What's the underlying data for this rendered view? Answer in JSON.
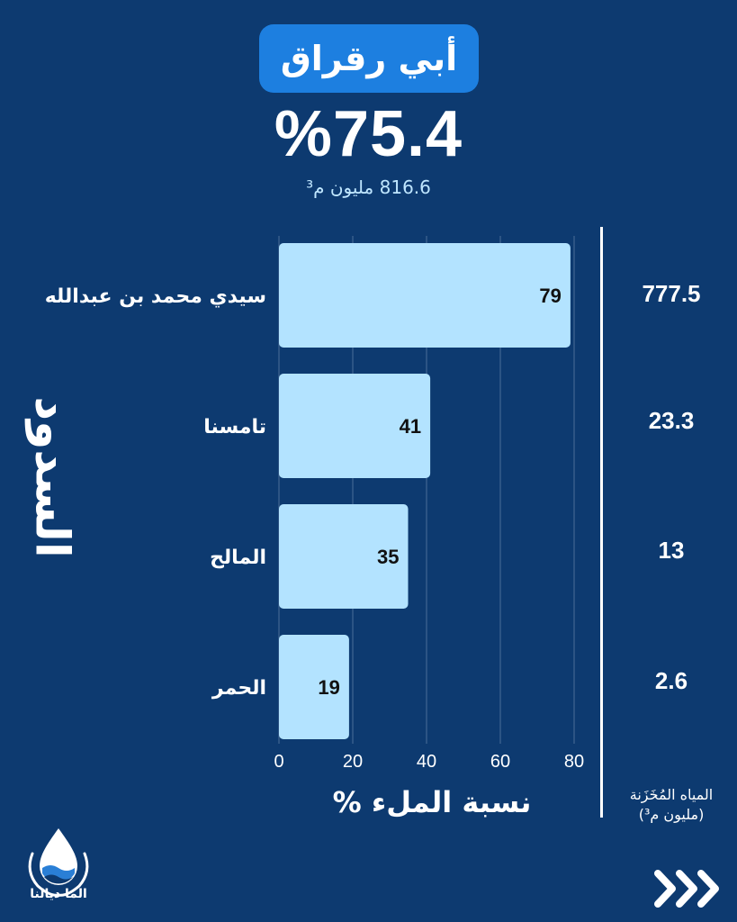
{
  "header": {
    "title": "أبي رقراق",
    "total_percent": "%75.4",
    "total_volume": "816.6 مليون م³"
  },
  "vertical_title": "السدود",
  "stored_label": {
    "line1": "المياه المُخَزَنة",
    "line2": "(مليون م³)"
  },
  "stored_values": [
    "777.5",
    "23.3",
    "13",
    "2.6"
  ],
  "brand": {
    "name": "الما ديالنا"
  },
  "colors": {
    "background": "#0d3a70",
    "bar": "#b3e3ff",
    "title_box": "#1d7fe0"
  },
  "chart_data": {
    "type": "bar",
    "orientation": "horizontal",
    "categories": [
      "سيدي محمد بن عبدالله",
      "تامسنا",
      "المالح",
      "الحمر"
    ],
    "values": [
      79,
      41,
      35,
      19
    ],
    "xlabel": "نسبة الملء %",
    "ylabel": "السدود",
    "xlim": [
      0,
      80
    ],
    "xticks": [
      0,
      20,
      40,
      60,
      80
    ],
    "grid": true
  }
}
